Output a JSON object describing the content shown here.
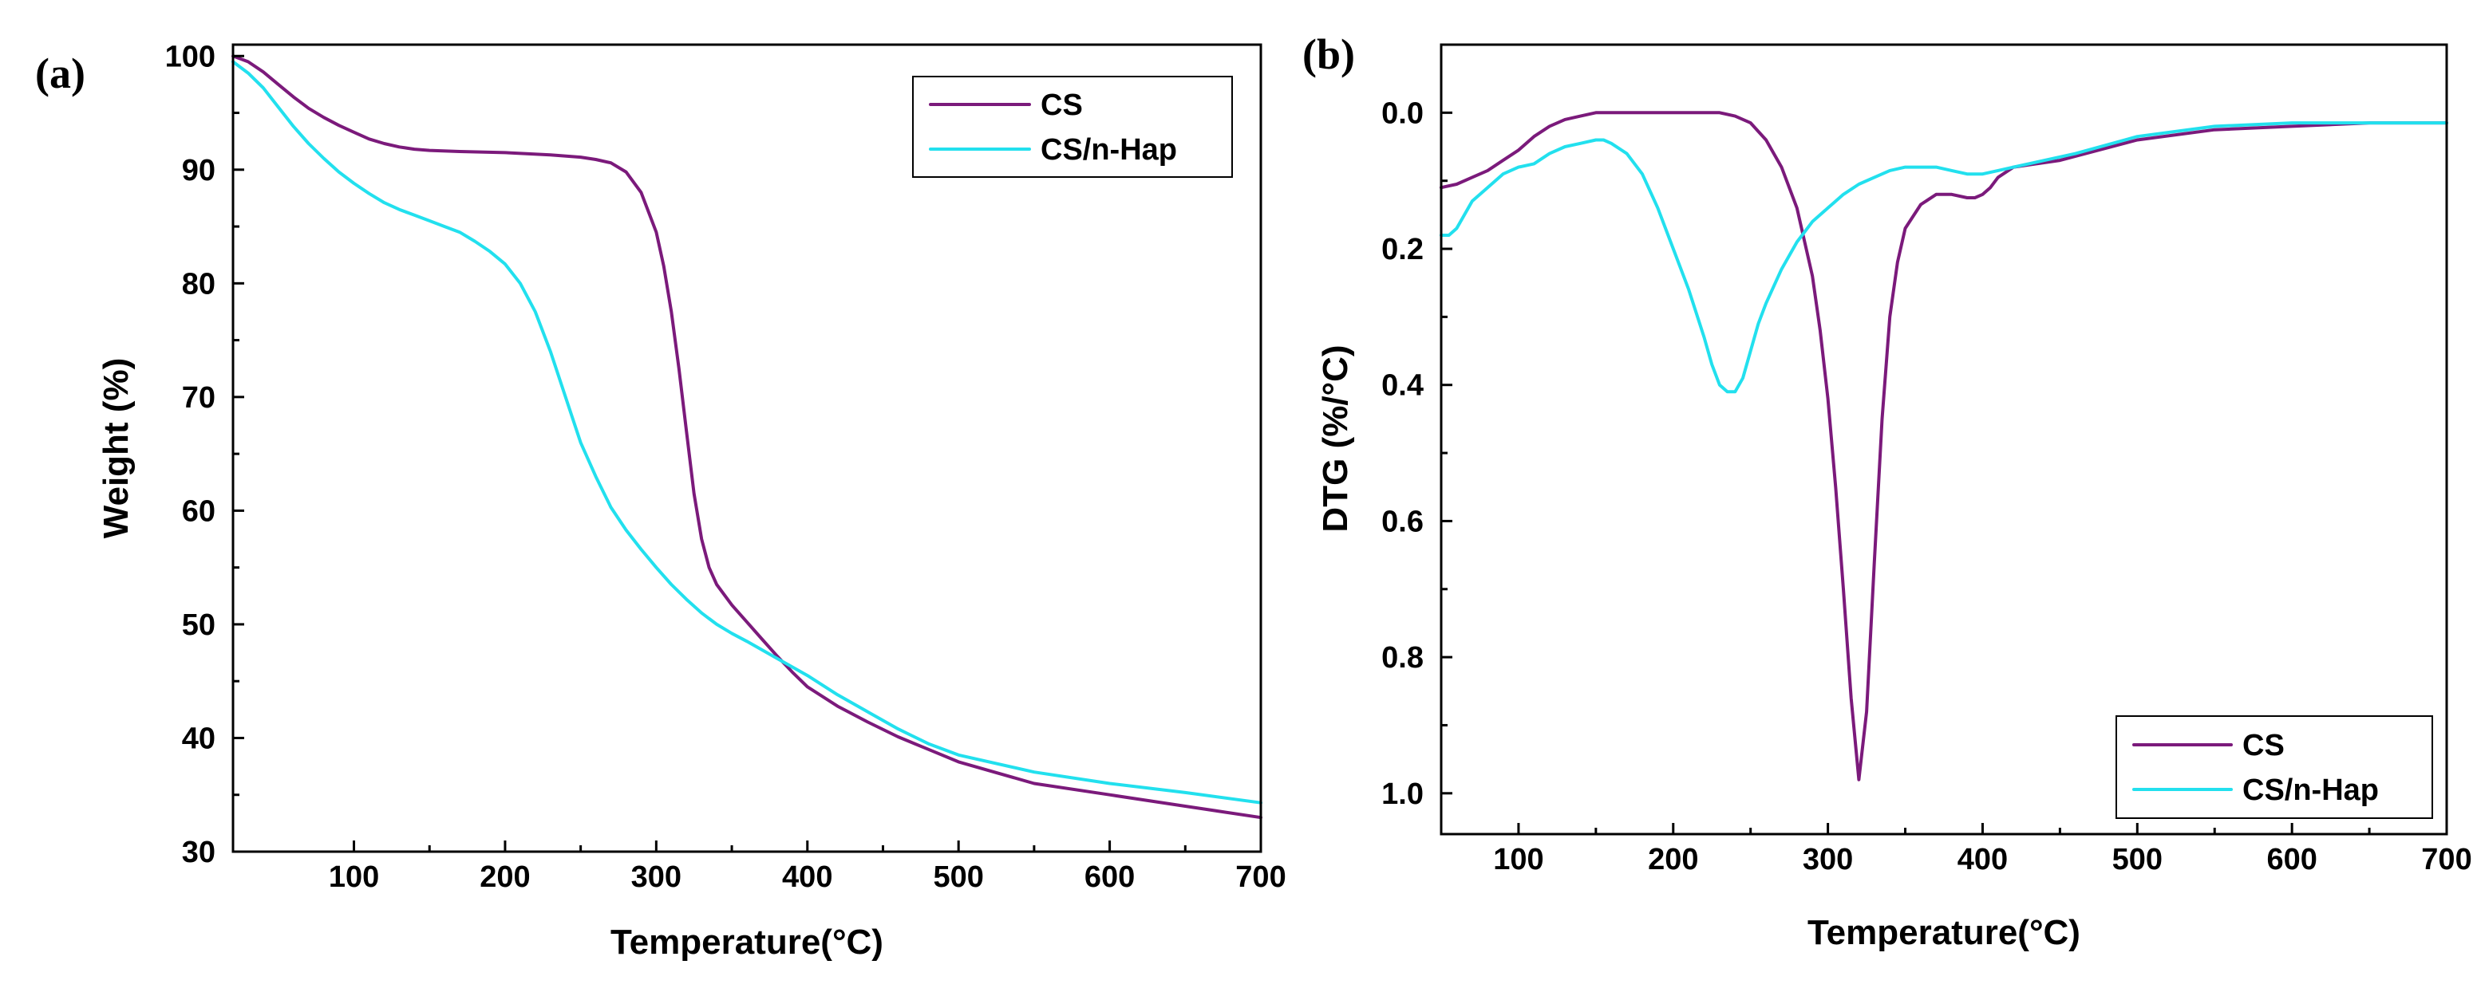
{
  "chart_data": [
    {
      "panel": "(a)",
      "type": "line",
      "xlabel": "Temperature(°C)",
      "ylabel": "Weight (%)",
      "xlim": [
        20,
        700
      ],
      "ylim": [
        30,
        101
      ],
      "xticks": [
        100,
        200,
        300,
        400,
        500,
        600,
        700
      ],
      "yticks": [
        30,
        40,
        50,
        60,
        70,
        80,
        90,
        100
      ],
      "legend": "top-right",
      "series": [
        {
          "name": "CS",
          "color": "#7b1a7b",
          "x": [
            20,
            30,
            40,
            50,
            60,
            70,
            80,
            90,
            100,
            110,
            120,
            130,
            140,
            150,
            170,
            200,
            230,
            250,
            260,
            270,
            280,
            290,
            300,
            305,
            310,
            315,
            320,
            325,
            330,
            335,
            340,
            350,
            360,
            370,
            380,
            390,
            400,
            420,
            440,
            460,
            480,
            500,
            550,
            600,
            650,
            700
          ],
          "y": [
            100,
            99.5,
            98.6,
            97.5,
            96.4,
            95.4,
            94.6,
            93.9,
            93.3,
            92.7,
            92.3,
            92.0,
            91.8,
            91.7,
            91.6,
            91.5,
            91.3,
            91.1,
            90.9,
            90.6,
            89.8,
            88.0,
            84.5,
            81.5,
            77.5,
            72.5,
            67.0,
            61.5,
            57.5,
            55.0,
            53.5,
            51.7,
            50.2,
            48.7,
            47.2,
            45.8,
            44.5,
            42.8,
            41.4,
            40.1,
            39.0,
            37.9,
            36.0,
            35.0,
            34.0,
            33.0
          ]
        },
        {
          "name": "CS/n-Hap",
          "color": "#22e0ee",
          "x": [
            20,
            30,
            40,
            50,
            60,
            70,
            80,
            90,
            100,
            110,
            120,
            130,
            140,
            150,
            160,
            170,
            180,
            190,
            200,
            210,
            220,
            230,
            240,
            250,
            260,
            270,
            280,
            290,
            300,
            310,
            320,
            330,
            340,
            350,
            360,
            380,
            400,
            420,
            440,
            460,
            480,
            500,
            550,
            600,
            650,
            700
          ],
          "y": [
            99.5,
            98.5,
            97.2,
            95.5,
            93.8,
            92.3,
            91.0,
            89.8,
            88.8,
            87.9,
            87.1,
            86.5,
            86.0,
            85.5,
            85.0,
            84.5,
            83.7,
            82.8,
            81.7,
            80.0,
            77.5,
            74.0,
            70.0,
            66.0,
            63.0,
            60.3,
            58.3,
            56.6,
            55.0,
            53.5,
            52.2,
            51.0,
            50.0,
            49.2,
            48.5,
            47.0,
            45.5,
            43.8,
            42.3,
            40.8,
            39.5,
            38.5,
            37.0,
            36.0,
            35.2,
            34.3
          ]
        }
      ]
    },
    {
      "panel": "(b)",
      "type": "line",
      "xlabel": "Temperature(°C)",
      "ylabel": "DTG (%/°C)",
      "xlim": [
        50,
        700
      ],
      "ylim": [
        -0.1,
        1.06
      ],
      "y_inverted": true,
      "xticks": [
        100,
        200,
        300,
        400,
        500,
        600,
        700
      ],
      "yticks": [
        0.0,
        0.2,
        0.4,
        0.6,
        0.8,
        1.0
      ],
      "ytick_labels": [
        "0.0",
        "0.2",
        "0.4",
        "0.6",
        "0.8",
        "1.0"
      ],
      "legend": "bottom-right",
      "series": [
        {
          "name": "CS",
          "color": "#7b1a7b",
          "x": [
            50,
            60,
            70,
            80,
            90,
            100,
            110,
            120,
            130,
            140,
            150,
            170,
            200,
            230,
            240,
            250,
            260,
            270,
            280,
            290,
            295,
            300,
            305,
            310,
            315,
            320,
            325,
            330,
            335,
            340,
            345,
            350,
            360,
            370,
            380,
            390,
            395,
            400,
            405,
            410,
            420,
            450,
            500,
            550,
            600,
            650,
            700
          ],
          "y": [
            0.11,
            0.105,
            0.095,
            0.085,
            0.07,
            0.055,
            0.035,
            0.02,
            0.01,
            0.005,
            0.0,
            0.0,
            0.0,
            0.0,
            0.005,
            0.015,
            0.04,
            0.08,
            0.14,
            0.24,
            0.32,
            0.42,
            0.55,
            0.7,
            0.86,
            0.98,
            0.88,
            0.66,
            0.45,
            0.3,
            0.22,
            0.17,
            0.135,
            0.12,
            0.12,
            0.125,
            0.125,
            0.12,
            0.11,
            0.095,
            0.08,
            0.07,
            0.04,
            0.025,
            0.02,
            0.015,
            0.015
          ]
        },
        {
          "name": "CS/n-Hap",
          "color": "#22e0ee",
          "x": [
            50,
            55,
            60,
            65,
            70,
            80,
            90,
            100,
            110,
            120,
            130,
            140,
            150,
            155,
            160,
            170,
            180,
            190,
            200,
            210,
            220,
            225,
            230,
            235,
            240,
            245,
            250,
            255,
            260,
            270,
            280,
            290,
            300,
            310,
            320,
            330,
            340,
            350,
            360,
            370,
            380,
            390,
            400,
            410,
            420,
            440,
            460,
            500,
            550,
            600,
            650,
            700
          ],
          "y": [
            0.18,
            0.18,
            0.17,
            0.15,
            0.13,
            0.11,
            0.09,
            0.08,
            0.075,
            0.06,
            0.05,
            0.045,
            0.04,
            0.04,
            0.045,
            0.06,
            0.09,
            0.14,
            0.2,
            0.26,
            0.33,
            0.37,
            0.4,
            0.41,
            0.41,
            0.39,
            0.35,
            0.31,
            0.28,
            0.23,
            0.19,
            0.16,
            0.14,
            0.12,
            0.105,
            0.095,
            0.085,
            0.08,
            0.08,
            0.08,
            0.085,
            0.09,
            0.09,
            0.085,
            0.08,
            0.07,
            0.06,
            0.035,
            0.02,
            0.015,
            0.015,
            0.015
          ]
        }
      ]
    }
  ]
}
